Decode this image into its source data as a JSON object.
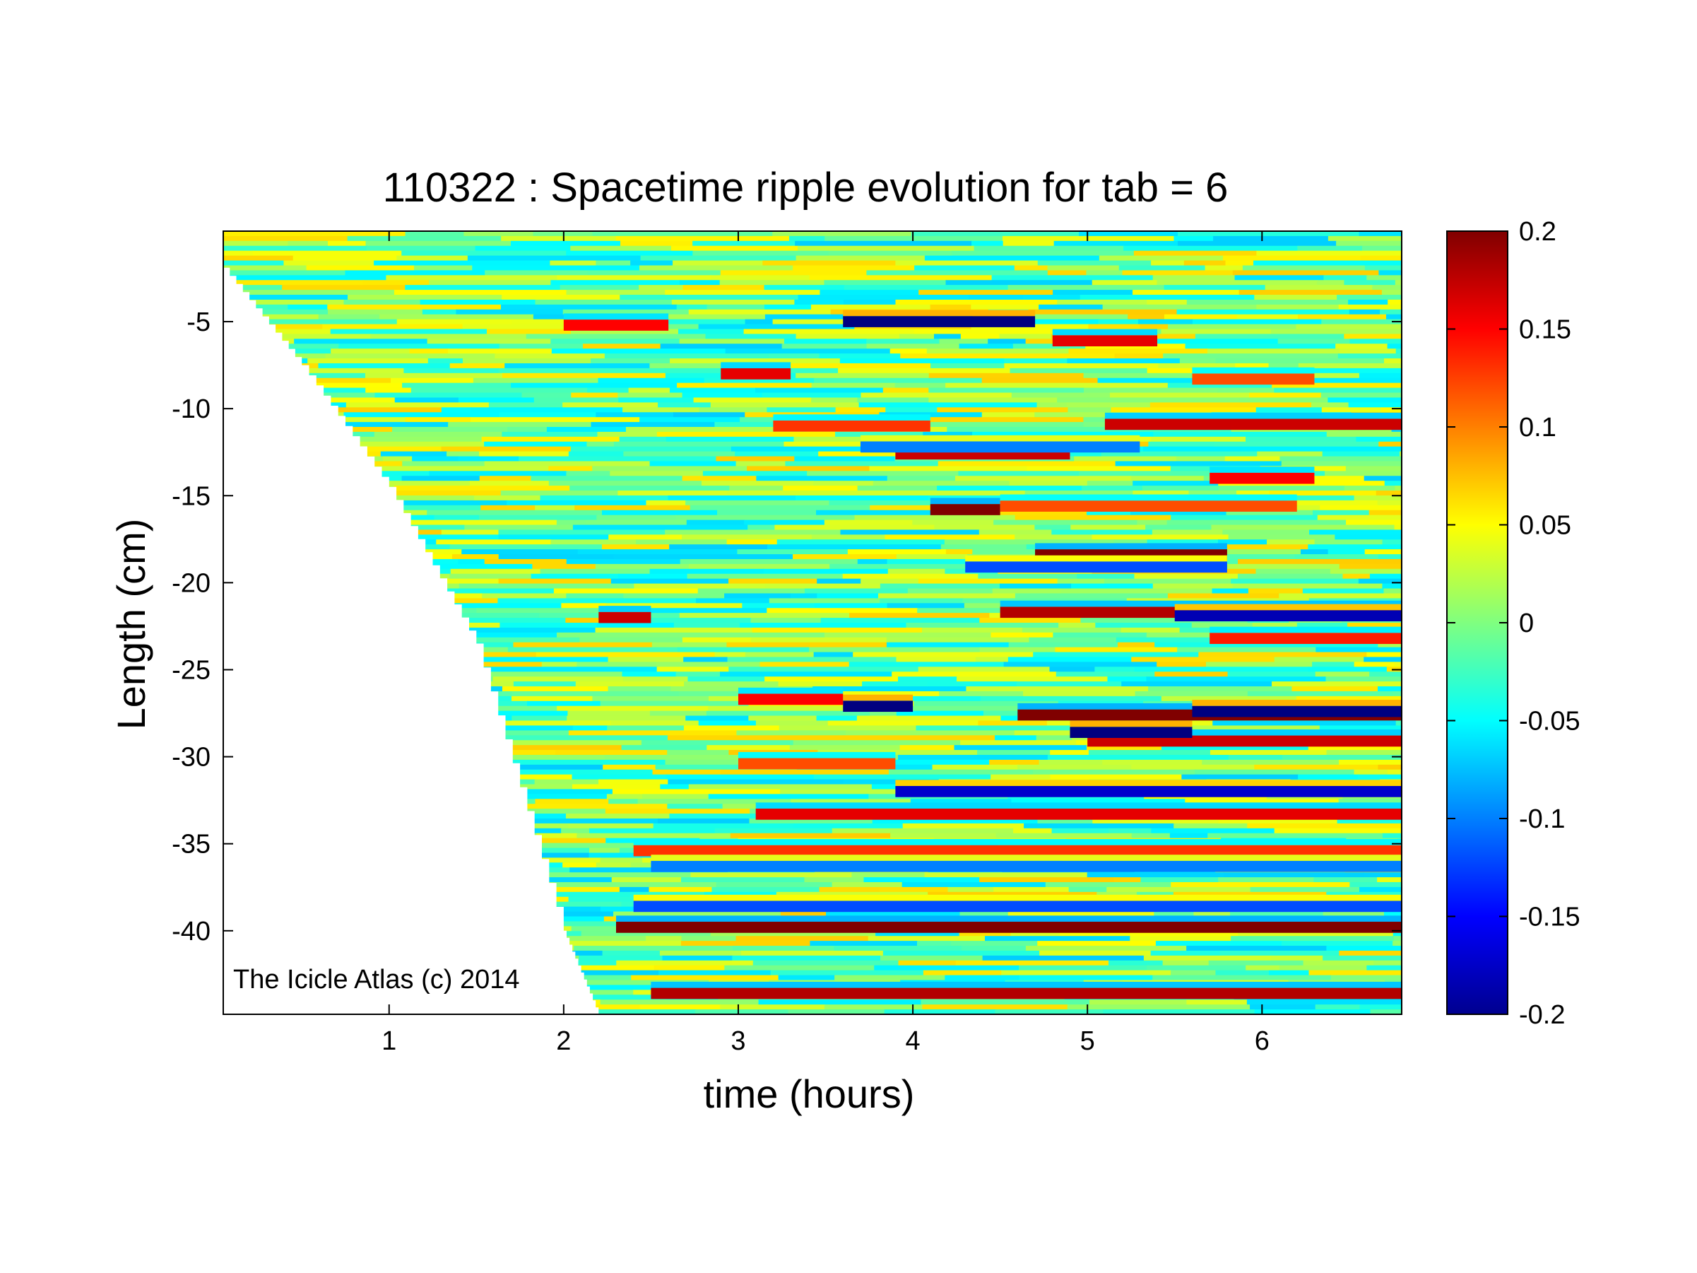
{
  "chart_data": {
    "type": "heatmap",
    "title": "110322 : Spacetime ripple evolution for tab = 6",
    "xlabel": "time (hours)",
    "ylabel": "Length (cm)",
    "xlim": [
      0.05,
      6.8
    ],
    "ylim": [
      -44.8,
      0.2
    ],
    "xticks": [
      1,
      2,
      3,
      4,
      5,
      6
    ],
    "yticks": [
      -5,
      -10,
      -15,
      -20,
      -25,
      -30,
      -35,
      -40
    ],
    "colorbar": {
      "colormap": "jet",
      "clim": [
        -0.2,
        0.2
      ],
      "ticks": [
        0.2,
        0.15,
        0.1,
        0.05,
        0,
        -0.05,
        -0.1,
        -0.15,
        -0.2
      ]
    },
    "annotation": "The Icicle Atlas (c) 2014",
    "grid": false,
    "icicle_tip": [
      {
        "t": 0.05,
        "y": -1.9
      },
      {
        "t": 0.5,
        "y": -7.5
      },
      {
        "t": 1.0,
        "y": -14.5
      },
      {
        "t": 1.5,
        "y": -23.5
      },
      {
        "t": 2.0,
        "y": -40.0
      },
      {
        "t": 2.2,
        "y": -44.8
      }
    ],
    "strong_bands": [
      {
        "t0": 2.3,
        "t1": 6.8,
        "y": -39.8,
        "v": 0.2
      },
      {
        "t0": 2.5,
        "t1": 6.8,
        "y": -43.6,
        "v": 0.18
      },
      {
        "t0": 2.4,
        "t1": 6.8,
        "y": -38.6,
        "v": -0.12
      },
      {
        "t0": 2.4,
        "t1": 6.8,
        "y": -35.4,
        "v": 0.13
      },
      {
        "t0": 2.5,
        "t1": 6.8,
        "y": -36.3,
        "v": -0.1
      },
      {
        "t0": 3.1,
        "t1": 6.8,
        "y": -33.3,
        "v": 0.16
      },
      {
        "t0": 3.9,
        "t1": 6.8,
        "y": -32.0,
        "v": -0.17
      },
      {
        "t0": 3.0,
        "t1": 3.9,
        "y": -30.4,
        "v": 0.12
      },
      {
        "t0": 4.6,
        "t1": 6.8,
        "y": -27.6,
        "v": 0.2
      },
      {
        "t0": 5.6,
        "t1": 6.8,
        "y": -27.4,
        "v": -0.2
      },
      {
        "t0": 5.0,
        "t1": 6.8,
        "y": -29.1,
        "v": 0.17
      },
      {
        "t0": 4.9,
        "t1": 5.6,
        "y": -28.6,
        "v": -0.2
      },
      {
        "t0": 3.6,
        "t1": 4.0,
        "y": -27.1,
        "v": -0.2
      },
      {
        "t0": 3.0,
        "t1": 3.6,
        "y": -26.7,
        "v": 0.15
      },
      {
        "t0": 2.2,
        "t1": 2.5,
        "y": -22.0,
        "v": 0.17
      },
      {
        "t0": 4.5,
        "t1": 6.8,
        "y": -21.7,
        "v": 0.18
      },
      {
        "t0": 5.5,
        "t1": 6.8,
        "y": -21.9,
        "v": -0.18
      },
      {
        "t0": 5.7,
        "t1": 6.8,
        "y": -23.2,
        "v": 0.14
      },
      {
        "t0": 4.7,
        "t1": 5.8,
        "y": -18.4,
        "v": 0.2
      },
      {
        "t0": 4.1,
        "t1": 4.5,
        "y": -15.8,
        "v": 0.2
      },
      {
        "t0": 4.5,
        "t1": 6.2,
        "y": -15.6,
        "v": 0.12
      },
      {
        "t0": 3.6,
        "t1": 4.7,
        "y": -5.0,
        "v": -0.2
      },
      {
        "t0": 2.0,
        "t1": 2.6,
        "y": -5.2,
        "v": 0.15
      },
      {
        "t0": 4.8,
        "t1": 5.4,
        "y": -6.1,
        "v": 0.16
      },
      {
        "t0": 5.1,
        "t1": 6.8,
        "y": -10.9,
        "v": 0.17
      },
      {
        "t0": 3.2,
        "t1": 4.1,
        "y": -11.0,
        "v": 0.13
      },
      {
        "t0": 3.9,
        "t1": 4.9,
        "y": -12.6,
        "v": 0.17
      },
      {
        "t0": 5.7,
        "t1": 6.3,
        "y": -14.0,
        "v": 0.15
      },
      {
        "t0": 2.9,
        "t1": 3.3,
        "y": -8.0,
        "v": 0.16
      },
      {
        "t0": 5.6,
        "t1": 6.3,
        "y": -8.3,
        "v": 0.12
      },
      {
        "t0": 3.7,
        "t1": 5.3,
        "y": -12.2,
        "v": -0.1
      },
      {
        "t0": 4.3,
        "t1": 5.8,
        "y": -19.1,
        "v": -0.12
      }
    ]
  }
}
